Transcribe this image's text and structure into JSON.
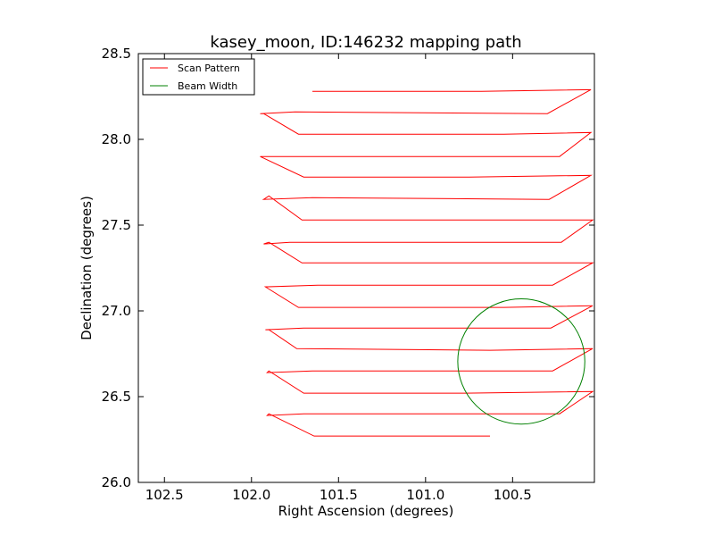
{
  "chart_data": {
    "type": "line",
    "title": "kasey_moon, ID:146232 mapping path",
    "xlabel": "Right Ascension (degrees)",
    "ylabel": "Declination (degrees)",
    "xlim": [
      102.65,
      100.03
    ],
    "ylim": [
      26.0,
      28.5
    ],
    "x_ticks": [
      102.5,
      102.0,
      101.5,
      101.0,
      100.5
    ],
    "x_tick_labels": [
      "102.5",
      "102.0",
      "101.5",
      "101.0",
      "100.5"
    ],
    "y_ticks": [
      26.0,
      26.5,
      27.0,
      27.5,
      28.0,
      28.5
    ],
    "y_tick_labels": [
      "26.0",
      "26.5",
      "27.0",
      "27.5",
      "28.0",
      "28.5"
    ],
    "legend": {
      "location": "upper-left",
      "entries": [
        {
          "label": "Scan Pattern",
          "color": "#ff0000",
          "kind": "line"
        },
        {
          "label": "Beam Width",
          "color": "#008000",
          "kind": "line"
        }
      ]
    },
    "series": [
      {
        "name": "Scan Pattern",
        "color": "#ff0000",
        "points": [
          [
            101.65,
            28.28
          ],
          [
            100.68,
            28.28
          ],
          [
            100.05,
            28.29
          ],
          [
            100.3,
            28.15
          ],
          [
            101.75,
            28.16
          ],
          [
            101.95,
            28.15
          ],
          [
            101.93,
            28.15
          ],
          [
            101.73,
            28.03
          ],
          [
            100.55,
            28.03
          ],
          [
            100.05,
            28.04
          ],
          [
            100.23,
            27.9
          ],
          [
            101.6,
            27.9
          ],
          [
            101.95,
            27.9
          ],
          [
            101.7,
            27.78
          ],
          [
            100.75,
            27.78
          ],
          [
            100.05,
            27.79
          ],
          [
            100.29,
            27.65
          ],
          [
            101.65,
            27.66
          ],
          [
            101.93,
            27.65
          ],
          [
            101.9,
            27.67
          ],
          [
            101.71,
            27.53
          ],
          [
            100.55,
            27.53
          ],
          [
            100.04,
            27.53
          ],
          [
            100.22,
            27.4
          ],
          [
            101.78,
            27.4
          ],
          [
            101.93,
            27.39
          ],
          [
            101.9,
            27.4
          ],
          [
            101.71,
            27.28
          ],
          [
            100.8,
            27.28
          ],
          [
            100.04,
            27.28
          ],
          [
            100.27,
            27.15
          ],
          [
            101.62,
            27.15
          ],
          [
            101.92,
            27.14
          ],
          [
            101.73,
            27.02
          ],
          [
            100.55,
            27.02
          ],
          [
            100.04,
            27.03
          ],
          [
            100.28,
            26.9
          ],
          [
            101.7,
            26.9
          ],
          [
            101.92,
            26.89
          ],
          [
            101.9,
            26.89
          ],
          [
            101.74,
            26.78
          ],
          [
            100.63,
            26.77
          ],
          [
            100.04,
            26.78
          ],
          [
            100.27,
            26.65
          ],
          [
            101.65,
            26.65
          ],
          [
            101.91,
            26.64
          ],
          [
            101.9,
            26.65
          ],
          [
            101.7,
            26.52
          ],
          [
            100.77,
            26.52
          ],
          [
            100.04,
            26.53
          ],
          [
            100.23,
            26.4
          ],
          [
            101.7,
            26.4
          ],
          [
            101.91,
            26.39
          ],
          [
            101.9,
            26.4
          ],
          [
            101.64,
            26.27
          ],
          [
            100.63,
            26.27
          ]
        ]
      },
      {
        "name": "Beam Width",
        "color": "#008000",
        "shape": "circle",
        "center": [
          100.45,
          26.705
        ],
        "radius": 0.365
      }
    ]
  }
}
